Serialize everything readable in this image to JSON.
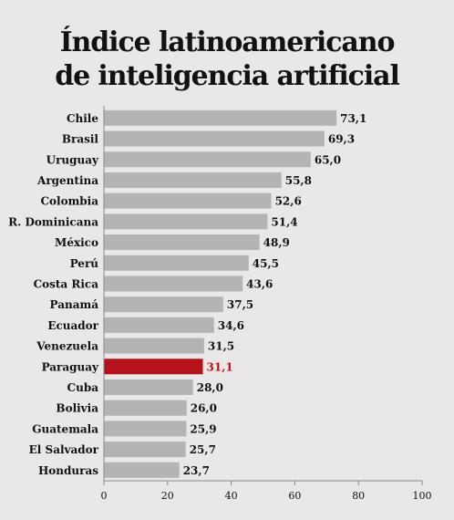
{
  "title_line1": "Índice latinoamericano",
  "title_line2": "de inteligencia artificial",
  "chart_data": {
    "type": "bar",
    "orientation": "horizontal",
    "categories": [
      "Chile",
      "Brasil",
      "Uruguay",
      "Argentina",
      "Colombia",
      "R. Dominicana",
      "México",
      "Perú",
      "Costa Rica",
      "Panamá",
      "Ecuador",
      "Venezuela",
      "Paraguay",
      "Cuba",
      "Bolivia",
      "Guatemala",
      "El Salvador",
      "Honduras"
    ],
    "values": [
      73.1,
      69.3,
      65.0,
      55.8,
      52.6,
      51.4,
      48.9,
      45.5,
      43.6,
      37.5,
      34.6,
      31.5,
      31.1,
      28.0,
      26.0,
      25.9,
      25.7,
      23.7
    ],
    "value_labels": [
      "73,1",
      "69,3",
      "65,0",
      "55,8",
      "52,6",
      "51,4",
      "48,9",
      "45,5",
      "43,6",
      "37,5",
      "34,6",
      "31,5",
      "31,1",
      "28,0",
      "26,0",
      "25,9",
      "25,7",
      "23,7"
    ],
    "highlight": "Paraguay",
    "xlim": [
      0,
      100
    ],
    "xticks": [
      "0",
      "20",
      "40",
      "60",
      "80",
      "100"
    ],
    "grid": false,
    "colors": {
      "bar": "#b4b4b4",
      "highlight": "#b5121b",
      "axis": "#888888",
      "text": "#111111"
    }
  }
}
